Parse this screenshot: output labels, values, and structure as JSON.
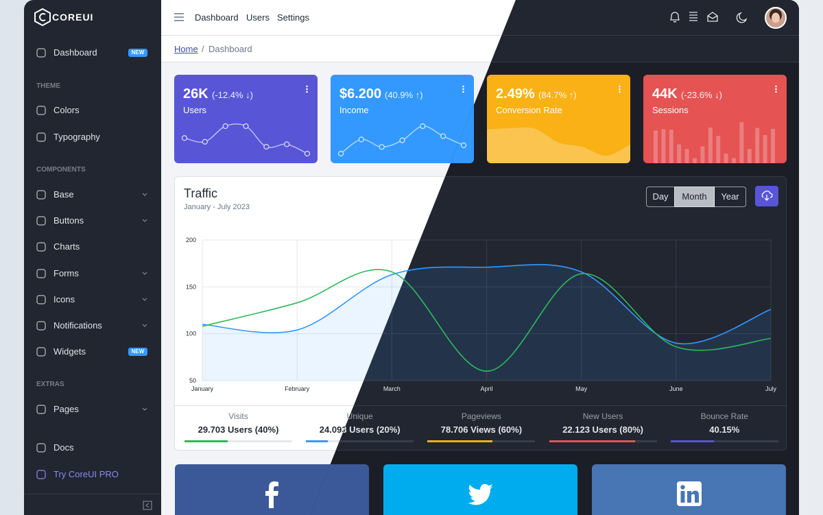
{
  "sidebar": {
    "brand": "COREUI",
    "dashboard": "Dashboard",
    "dashboard_badge": "NEW",
    "sections": [
      "THEME",
      "COMPONENTS",
      "EXTRAS"
    ],
    "items": [
      "Colors",
      "Typography",
      "Base",
      "Buttons",
      "Charts",
      "Forms",
      "Icons",
      "Notifications",
      "Widgets",
      "Pages",
      "Docs",
      "Try CoreUI PRO"
    ],
    "widgets_badge": "NEW"
  },
  "header": {
    "nav": [
      "Dashboard",
      "Users",
      "Settings"
    ]
  },
  "breadcrumb": [
    "Home",
    "Dashboard"
  ],
  "widgets": [
    {
      "value": "26K",
      "change": "(-12.4% ↓)",
      "label": "Users",
      "color": "#5856d6",
      "chart": "line",
      "values": [
        65,
        59,
        84,
        84,
        51,
        55,
        40
      ]
    },
    {
      "value": "$6.200",
      "change": "(40.9% ↑)",
      "label": "Income",
      "color": "#3399ff",
      "chart": "line",
      "values": [
        1,
        18,
        9,
        17,
        34,
        22,
        11
      ]
    },
    {
      "value": "2.49%",
      "change": "(84.7% ↑)",
      "label": "Conversion Rate",
      "color": "#f9b115",
      "chart": "area",
      "values": [
        78,
        81,
        80,
        45,
        34,
        12,
        40
      ]
    },
    {
      "value": "44K",
      "change": "(-23.6% ↓)",
      "label": "Sessions",
      "color": "#e55353",
      "chart": "bar",
      "values": [
        78,
        81,
        80,
        45,
        34,
        12,
        40,
        85,
        65,
        23,
        12,
        98,
        34,
        84,
        67,
        82
      ]
    }
  ],
  "traffic": {
    "title": "Traffic",
    "subtitle": "January - July 2023",
    "periods": [
      "Day",
      "Month",
      "Year"
    ],
    "active_period": 1,
    "chart_data": {
      "type": "line",
      "categories": [
        "January",
        "February",
        "March",
        "April",
        "May",
        "June",
        "July"
      ],
      "series": [
        {
          "color": "#3399ff",
          "fill": true,
          "values": [
            110,
            104,
            163,
            171,
            166,
            90,
            126
          ]
        },
        {
          "color": "#2eb85c",
          "fill": false,
          "values": [
            108,
            133,
            166,
            60,
            164,
            86,
            95
          ]
        }
      ],
      "ylim": [
        50,
        200
      ],
      "yticks": [
        50,
        100,
        150,
        200
      ],
      "grid": true
    },
    "stats": [
      {
        "label": "Visits",
        "value": "29.703 Users (40%)",
        "percent": 40,
        "color": "#2eb85c"
      },
      {
        "label": "Unique",
        "value": "24.093 Users (20%)",
        "percent": 20,
        "color": "#3399ff"
      },
      {
        "label": "Pageviews",
        "value": "78.706 Views (60%)",
        "percent": 60,
        "color": "#f9b115"
      },
      {
        "label": "New Users",
        "value": "22.123 Users (80%)",
        "percent": 80,
        "color": "#e55353"
      },
      {
        "label": "Bounce Rate",
        "value": "40.15%",
        "percent": 40.15,
        "color": "#5856d6"
      }
    ]
  }
}
